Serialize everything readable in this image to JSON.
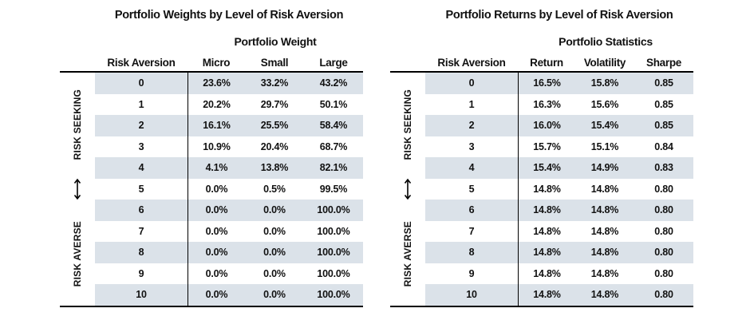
{
  "page": {
    "background": "#ffffff",
    "text_color": "#111111",
    "row_shade_color": "#dbe2e9",
    "rule_color": "#000000"
  },
  "tables": [
    {
      "title": "Portfolio Weights by Level of Risk Aversion",
      "group_header": "Portfolio Weight",
      "row_header": "Risk Aversion",
      "columns": [
        "Micro",
        "Small",
        "Large"
      ],
      "side_labels": {
        "seeking": "RISK SEEKING",
        "averse": "RISK AVERSE",
        "arrow_icon": "vertical-double-arrow"
      },
      "rows": [
        {
          "risk_aversion": "0",
          "values": [
            "23.6%",
            "33.2%",
            "43.2%"
          ]
        },
        {
          "risk_aversion": "1",
          "values": [
            "20.2%",
            "29.7%",
            "50.1%"
          ]
        },
        {
          "risk_aversion": "2",
          "values": [
            "16.1%",
            "25.5%",
            "58.4%"
          ]
        },
        {
          "risk_aversion": "3",
          "values": [
            "10.9%",
            "20.4%",
            "68.7%"
          ]
        },
        {
          "risk_aversion": "4",
          "values": [
            "4.1%",
            "13.8%",
            "82.1%"
          ]
        },
        {
          "risk_aversion": "5",
          "values": [
            "0.0%",
            "0.5%",
            "99.5%"
          ]
        },
        {
          "risk_aversion": "6",
          "values": [
            "0.0%",
            "0.0%",
            "100.0%"
          ]
        },
        {
          "risk_aversion": "7",
          "values": [
            "0.0%",
            "0.0%",
            "100.0%"
          ]
        },
        {
          "risk_aversion": "8",
          "values": [
            "0.0%",
            "0.0%",
            "100.0%"
          ]
        },
        {
          "risk_aversion": "9",
          "values": [
            "0.0%",
            "0.0%",
            "100.0%"
          ]
        },
        {
          "risk_aversion": "10",
          "values": [
            "0.0%",
            "0.0%",
            "100.0%"
          ]
        }
      ]
    },
    {
      "title": "Portfolio Returns by Level of Risk Aversion",
      "group_header": "Portfolio Statistics",
      "row_header": "Risk Aversion",
      "columns": [
        "Return",
        "Volatility",
        "Sharpe"
      ],
      "side_labels": {
        "seeking": "RISK SEEKING",
        "averse": "RISK AVERSE",
        "arrow_icon": "vertical-double-arrow"
      },
      "rows": [
        {
          "risk_aversion": "0",
          "values": [
            "16.5%",
            "15.8%",
            "0.85"
          ]
        },
        {
          "risk_aversion": "1",
          "values": [
            "16.3%",
            "15.6%",
            "0.85"
          ]
        },
        {
          "risk_aversion": "2",
          "values": [
            "16.0%",
            "15.4%",
            "0.85"
          ]
        },
        {
          "risk_aversion": "3",
          "values": [
            "15.7%",
            "15.1%",
            "0.84"
          ]
        },
        {
          "risk_aversion": "4",
          "values": [
            "15.4%",
            "14.9%",
            "0.83"
          ]
        },
        {
          "risk_aversion": "5",
          "values": [
            "14.8%",
            "14.8%",
            "0.80"
          ]
        },
        {
          "risk_aversion": "6",
          "values": [
            "14.8%",
            "14.8%",
            "0.80"
          ]
        },
        {
          "risk_aversion": "7",
          "values": [
            "14.8%",
            "14.8%",
            "0.80"
          ]
        },
        {
          "risk_aversion": "8",
          "values": [
            "14.8%",
            "14.8%",
            "0.80"
          ]
        },
        {
          "risk_aversion": "9",
          "values": [
            "14.8%",
            "14.8%",
            "0.80"
          ]
        },
        {
          "risk_aversion": "10",
          "values": [
            "14.8%",
            "14.8%",
            "0.80"
          ]
        }
      ]
    }
  ]
}
